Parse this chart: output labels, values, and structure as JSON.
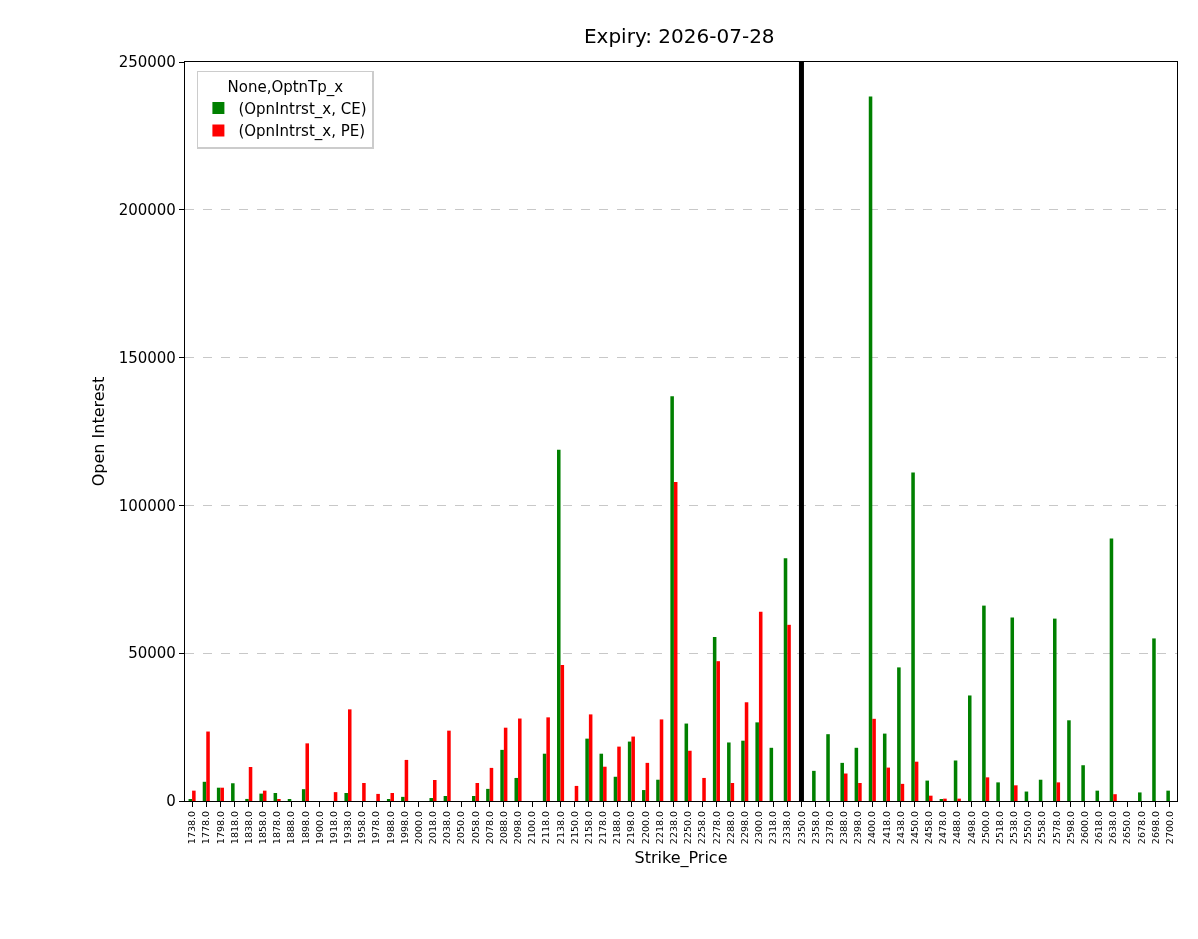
{
  "chart_data": {
    "type": "bar",
    "title": "Expiry: 2026-07-28",
    "xlabel": "Strike_Price",
    "ylabel": "Open Interest",
    "legend_title": "None,OptnTp_x",
    "categories": [
      "1738.0",
      "1778.0",
      "1798.0",
      "1818.0",
      "1838.0",
      "1858.0",
      "1878.0",
      "1888.0",
      "1898.0",
      "1900.0",
      "1918.0",
      "1938.0",
      "1958.0",
      "1978.0",
      "1988.0",
      "1998.0",
      "2000.0",
      "2018.0",
      "2038.0",
      "2050.0",
      "2058.0",
      "2078.0",
      "2088.0",
      "2098.0",
      "2100.0",
      "2118.0",
      "2138.0",
      "2150.0",
      "2158.0",
      "2178.0",
      "2188.0",
      "2198.0",
      "2200.0",
      "2218.0",
      "2238.0",
      "2250.0",
      "2258.0",
      "2278.0",
      "2288.0",
      "2298.0",
      "2300.0",
      "2318.0",
      "2338.0",
      "2350.0",
      "2358.0",
      "2378.0",
      "2388.0",
      "2398.0",
      "2400.0",
      "2418.0",
      "2438.0",
      "2450.0",
      "2458.0",
      "2478.0",
      "2488.0",
      "2498.0",
      "2500.0",
      "2518.0",
      "2538.0",
      "2550.0",
      "2558.0",
      "2578.0",
      "2598.0",
      "2600.0",
      "2618.0",
      "2638.0",
      "2650.0",
      "2678.0",
      "2698.0",
      "2700.0"
    ],
    "series": [
      {
        "name": "(OpnIntrst_x, CE)",
        "color": "#008000",
        "values": [
          500,
          6500,
          4500,
          6000,
          700,
          2500,
          2700,
          400,
          4000,
          null,
          null,
          2700,
          null,
          null,
          400,
          1400,
          null,
          1000,
          1700,
          null,
          1700,
          4100,
          17300,
          7800,
          null,
          16000,
          118800,
          null,
          21100,
          16000,
          8200,
          20100,
          3700,
          7200,
          136900,
          26200,
          null,
          55500,
          19800,
          20400,
          26600,
          18000,
          82100,
          null,
          10200,
          22600,
          12900,
          18000,
          238300,
          22800,
          45200,
          111100,
          6900,
          500,
          13700,
          35700,
          66100,
          6300,
          62100,
          3200,
          7200,
          61700,
          27300,
          12100,
          3500,
          88800,
          null,
          2900,
          55000,
          3500
        ]
      },
      {
        "name": "(OpnIntrst_x, PE)",
        "color": "#ff0000",
        "values": [
          3500,
          23500,
          4500,
          null,
          11500,
          3500,
          400,
          null,
          19500,
          null,
          3000,
          31000,
          6100,
          2400,
          2700,
          13900,
          null,
          7100,
          23800,
          null,
          6100,
          11200,
          24800,
          27900,
          null,
          28300,
          46000,
          5100,
          29300,
          11600,
          18400,
          21800,
          12900,
          27600,
          107900,
          17000,
          7800,
          47300,
          6100,
          33400,
          64000,
          null,
          59600,
          null,
          null,
          null,
          9300,
          6100,
          27800,
          11300,
          5800,
          13300,
          1800,
          800,
          800,
          null,
          8000,
          null,
          5300,
          null,
          null,
          6300,
          null,
          null,
          null,
          2300,
          null,
          null,
          null,
          null
        ]
      }
    ],
    "ylim": [
      0,
      250000
    ],
    "yticks": [
      0,
      50000,
      100000,
      150000,
      200000,
      250000
    ],
    "ref_lines": [
      {
        "axis": "x",
        "value": "2350.0",
        "color": "#000000"
      }
    ],
    "grid": "y",
    "legend": "top left"
  }
}
